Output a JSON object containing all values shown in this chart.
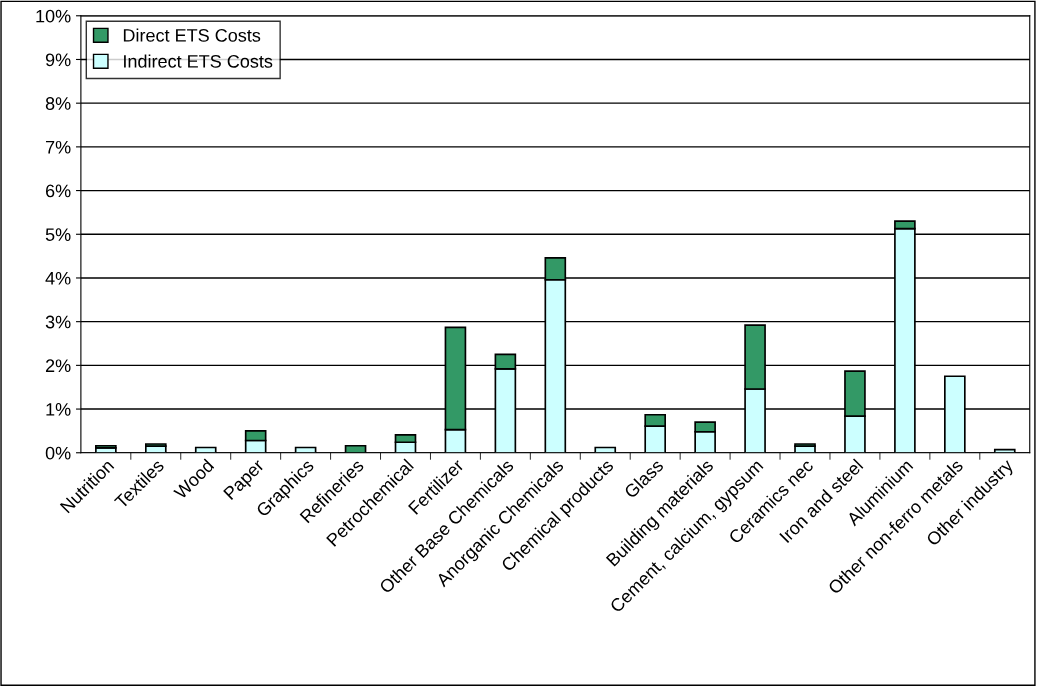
{
  "chart_data": {
    "type": "bar",
    "stacked": true,
    "categories": [
      "Nutrition",
      "Textiles",
      "Wood",
      "Paper",
      "Graphics",
      "Refineries",
      "Petrochemical",
      "Fertilizer",
      "Other Base Chemicals",
      "Anorganic Chemicals",
      "Chemical products",
      "Glass",
      "Building materials",
      "Cement, calcium, gypsum",
      "Ceramics nec",
      "Iron and steel",
      "Aluminium",
      "Other non-ferro metals",
      "Other industry"
    ],
    "series": [
      {
        "name": "Indirect ETS Costs",
        "color": "#ccffff",
        "values": [
          0.11,
          0.15,
          0.12,
          0.28,
          0.12,
          0,
          0.24,
          0.53,
          1.92,
          3.96,
          0.12,
          0.61,
          0.48,
          1.46,
          0.15,
          0.84,
          5.13,
          1.75,
          0.07
        ]
      },
      {
        "name": "Direct ETS Costs",
        "color": "#339966",
        "values": [
          0.05,
          0.05,
          0,
          0.22,
          0,
          0.16,
          0.17,
          2.34,
          0.33,
          0.5,
          0,
          0.26,
          0.22,
          1.46,
          0.05,
          1.03,
          0.17,
          0,
          0
        ]
      }
    ],
    "ylim": [
      0,
      10
    ],
    "yticks": [
      {
        "value": 0,
        "label": "0%"
      },
      {
        "value": 1,
        "label": "1%"
      },
      {
        "value": 2,
        "label": "2%"
      },
      {
        "value": 3,
        "label": "3%"
      },
      {
        "value": 4,
        "label": "4%"
      },
      {
        "value": 5,
        "label": "5%"
      },
      {
        "value": 6,
        "label": "6%"
      },
      {
        "value": 7,
        "label": "7%"
      },
      {
        "value": 8,
        "label": "8%"
      },
      {
        "value": 9,
        "label": "9%"
      },
      {
        "value": 10,
        "label": "10%"
      }
    ],
    "grid": "y",
    "legend": "top left"
  }
}
